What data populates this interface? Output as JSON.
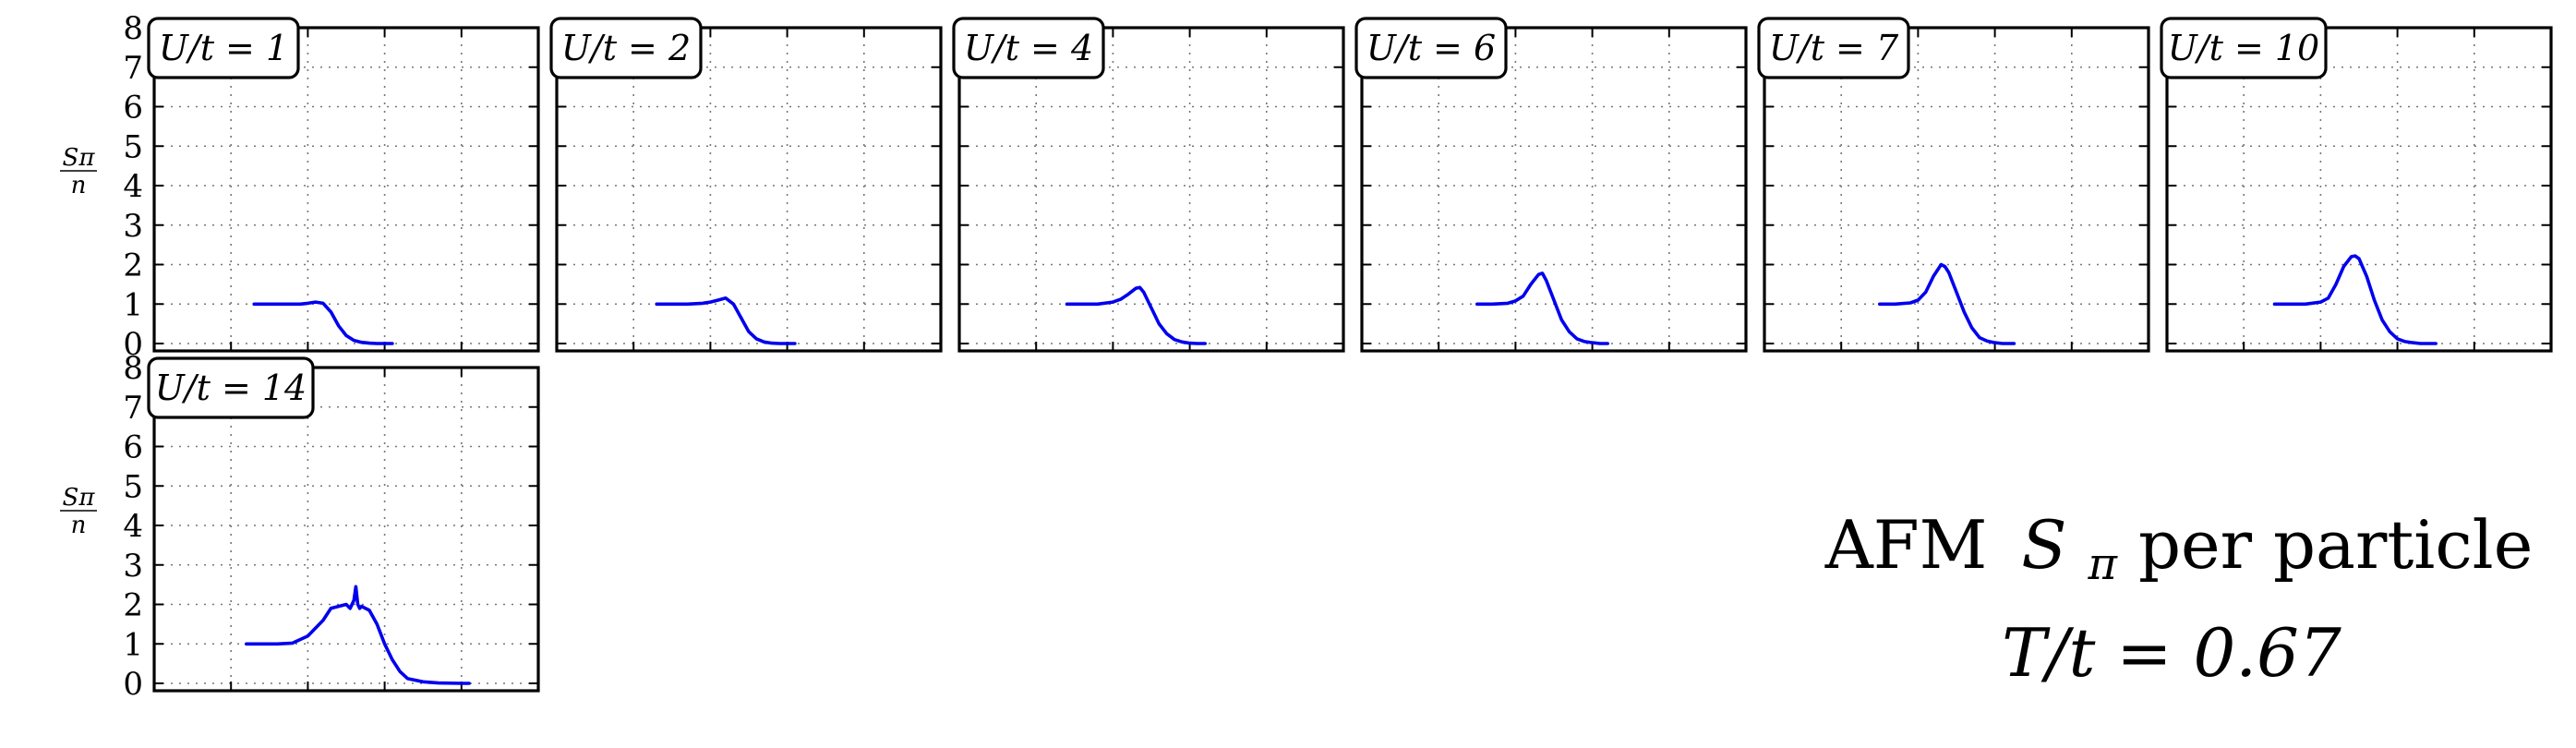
{
  "figure": {
    "title_main": "AFM",
    "title_sym": "S",
    "title_sub": "π",
    "title_rest": " per particle",
    "subtitle": "T/t = 0.67"
  },
  "chart_data": [
    {
      "type": "line",
      "panel_label": "U/t = 1",
      "ylabel": "Sπ/n",
      "ylim": [
        0,
        8
      ],
      "xlim": [
        0,
        1
      ],
      "yticks": [
        0,
        1,
        2,
        3,
        4,
        5,
        6,
        7,
        8
      ],
      "grid": true,
      "series": [
        {
          "color": "#0000ee",
          "x": [
            0.26,
            0.3,
            0.34,
            0.38,
            0.4,
            0.42,
            0.44,
            0.46,
            0.48,
            0.5,
            0.52,
            0.54,
            0.56,
            0.58,
            0.6,
            0.62
          ],
          "y": [
            1.0,
            1.0,
            1.0,
            1.0,
            1.02,
            1.05,
            1.02,
            0.8,
            0.45,
            0.2,
            0.08,
            0.03,
            0.01,
            0.0,
            0.0,
            0.0
          ]
        }
      ]
    },
    {
      "type": "line",
      "panel_label": "U/t = 2",
      "ylabel": "",
      "ylim": [
        0,
        8
      ],
      "xlim": [
        0,
        1
      ],
      "yticks": [
        0,
        1,
        2,
        3,
        4,
        5,
        6,
        7,
        8
      ],
      "grid": true,
      "series": [
        {
          "color": "#0000ee",
          "x": [
            0.26,
            0.3,
            0.34,
            0.38,
            0.4,
            0.42,
            0.44,
            0.46,
            0.48,
            0.5,
            0.52,
            0.54,
            0.56,
            0.58,
            0.6,
            0.62
          ],
          "y": [
            1.0,
            1.0,
            1.0,
            1.02,
            1.05,
            1.1,
            1.15,
            1.0,
            0.65,
            0.3,
            0.12,
            0.04,
            0.01,
            0.0,
            0.0,
            0.0
          ]
        }
      ]
    },
    {
      "type": "line",
      "panel_label": "U/t = 4",
      "ylabel": "",
      "ylim": [
        0,
        8
      ],
      "xlim": [
        0,
        1
      ],
      "yticks": [
        0,
        1,
        2,
        3,
        4,
        5,
        6,
        7,
        8
      ],
      "grid": true,
      "series": [
        {
          "color": "#0000ee",
          "x": [
            0.28,
            0.32,
            0.36,
            0.4,
            0.42,
            0.44,
            0.46,
            0.47,
            0.48,
            0.5,
            0.52,
            0.54,
            0.56,
            0.58,
            0.6,
            0.62,
            0.64
          ],
          "y": [
            1.0,
            1.0,
            1.0,
            1.05,
            1.12,
            1.25,
            1.4,
            1.42,
            1.3,
            0.9,
            0.5,
            0.25,
            0.1,
            0.04,
            0.01,
            0.0,
            0.0
          ]
        }
      ]
    },
    {
      "type": "line",
      "panel_label": "U/t = 6",
      "ylabel": "",
      "ylim": [
        0,
        8
      ],
      "xlim": [
        0,
        1
      ],
      "yticks": [
        0,
        1,
        2,
        3,
        4,
        5,
        6,
        7,
        8
      ],
      "grid": true,
      "series": [
        {
          "color": "#0000ee",
          "x": [
            0.3,
            0.34,
            0.38,
            0.4,
            0.42,
            0.44,
            0.46,
            0.47,
            0.48,
            0.5,
            0.52,
            0.54,
            0.56,
            0.58,
            0.6,
            0.62,
            0.64
          ],
          "y": [
            1.0,
            1.0,
            1.02,
            1.08,
            1.2,
            1.5,
            1.75,
            1.78,
            1.6,
            1.1,
            0.6,
            0.3,
            0.12,
            0.05,
            0.02,
            0.0,
            0.0
          ]
        }
      ]
    },
    {
      "type": "line",
      "panel_label": "U/t = 7",
      "ylabel": "",
      "ylim": [
        0,
        8
      ],
      "xlim": [
        0,
        1
      ],
      "yticks": [
        0,
        1,
        2,
        3,
        4,
        5,
        6,
        7,
        8
      ],
      "grid": true,
      "series": [
        {
          "color": "#0000ee",
          "x": [
            0.3,
            0.34,
            0.38,
            0.4,
            0.42,
            0.44,
            0.46,
            0.47,
            0.48,
            0.5,
            0.52,
            0.54,
            0.56,
            0.58,
            0.6,
            0.62,
            0.65
          ],
          "y": [
            1.0,
            1.0,
            1.03,
            1.1,
            1.3,
            1.7,
            2.0,
            1.95,
            1.8,
            1.3,
            0.8,
            0.4,
            0.15,
            0.06,
            0.02,
            0.0,
            0.0
          ]
        }
      ]
    },
    {
      "type": "line",
      "panel_label": "U/t = 10",
      "ylabel": "",
      "ylim": [
        0,
        8
      ],
      "xlim": [
        0,
        1
      ],
      "yticks": [
        0,
        1,
        2,
        3,
        4,
        5,
        6,
        7,
        8
      ],
      "grid": true,
      "series": [
        {
          "color": "#0000ee",
          "x": [
            0.28,
            0.32,
            0.36,
            0.4,
            0.42,
            0.44,
            0.46,
            0.48,
            0.49,
            0.5,
            0.52,
            0.54,
            0.56,
            0.58,
            0.6,
            0.62,
            0.64,
            0.66,
            0.7
          ],
          "y": [
            1.0,
            1.0,
            1.0,
            1.05,
            1.15,
            1.5,
            1.95,
            2.2,
            2.22,
            2.15,
            1.7,
            1.1,
            0.6,
            0.3,
            0.12,
            0.05,
            0.02,
            0.0,
            0.0
          ]
        }
      ]
    },
    {
      "type": "line",
      "panel_label": "U/t = 14",
      "ylabel": "Sπ/n",
      "ylim": [
        0,
        8
      ],
      "xlim": [
        0,
        1
      ],
      "yticks": [
        0,
        1,
        2,
        3,
        4,
        5,
        6,
        7,
        8
      ],
      "grid": true,
      "series": [
        {
          "color": "#0000ee",
          "x": [
            0.24,
            0.28,
            0.32,
            0.36,
            0.4,
            0.44,
            0.46,
            0.48,
            0.5,
            0.51,
            0.52,
            0.525,
            0.53,
            0.535,
            0.54,
            0.56,
            0.58,
            0.6,
            0.62,
            0.64,
            0.66,
            0.7,
            0.74,
            0.8,
            0.82
          ],
          "y": [
            1.0,
            1.0,
            1.0,
            1.02,
            1.2,
            1.6,
            1.9,
            1.95,
            2.0,
            1.9,
            2.1,
            2.45,
            2.0,
            1.9,
            1.95,
            1.85,
            1.5,
            1.0,
            0.6,
            0.3,
            0.12,
            0.04,
            0.01,
            0.0,
            0.0
          ]
        }
      ]
    }
  ]
}
